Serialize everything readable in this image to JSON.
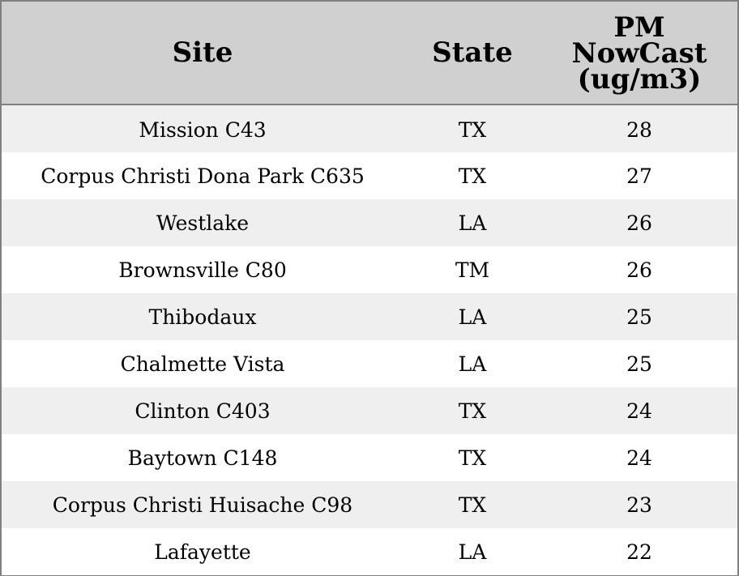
{
  "chart_data": {
    "type": "table",
    "columns": [
      "Site",
      "State",
      "PM\nNowCast\n(ug/m3)"
    ],
    "rows": [
      [
        "Mission C43",
        "TX",
        "28"
      ],
      [
        "Corpus Christi Dona Park C635",
        "TX",
        "27"
      ],
      [
        "Westlake",
        "LA",
        "26"
      ],
      [
        "Brownsville C80",
        "TM",
        "26"
      ],
      [
        "Thibodaux",
        "LA",
        "25"
      ],
      [
        "Chalmette Vista",
        "LA",
        "25"
      ],
      [
        "Clinton C403",
        "TX",
        "24"
      ],
      [
        "Baytown C148",
        "TX",
        "24"
      ],
      [
        "Corpus Christi Huisache C98",
        "TX",
        "23"
      ],
      [
        "Lafayette",
        "LA",
        "22"
      ]
    ]
  },
  "colors": {
    "header_bg": "#d0d0d0",
    "row_shade": "#efefef",
    "row_plain": "#ffffff",
    "border": "#808080"
  }
}
